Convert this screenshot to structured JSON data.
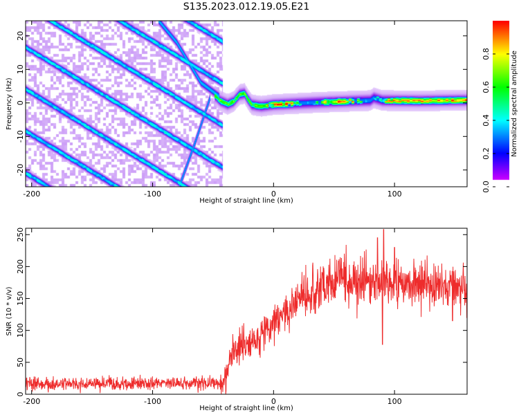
{
  "title": "S135.2023.012.19.05.E21",
  "chart_data": [
    {
      "type": "heatmap",
      "xlabel": "Height of straight line (km)",
      "ylabel": "Frequency (Hz)",
      "xlim": [
        -205,
        160
      ],
      "ylim": [
        -25,
        24.5
      ],
      "xticks": [
        -200,
        -100,
        0,
        100
      ],
      "yticks": [
        -20,
        -10,
        0,
        10,
        20
      ],
      "colorbar": {
        "label": "Normalized spectral amplitude",
        "range": [
          0,
          1
        ],
        "ticks": [
          0.0,
          0.2,
          0.4,
          0.6,
          0.8
        ],
        "colormap": "hsv",
        "low_end_color": "#ffffff"
      },
      "sweep_lines": {
        "slope_hz_per_km": -0.22,
        "spacing_hz": 12.5,
        "offsets_hz_at_x_minus_200": [
          -47,
          -34.5,
          -22,
          -9.5,
          3,
          15.5,
          28,
          40.5,
          53
        ],
        "cutoff_x_km": -42
      },
      "steep_lines": [
        {
          "x": [
            -95,
            -80,
            -60,
            -45
          ],
          "y": [
            24.5,
            18,
            6,
            2
          ]
        },
        {
          "x": [
            -78,
            -65,
            -52
          ],
          "y": [
            -25,
            -12,
            2
          ]
        }
      ],
      "carrier_band": {
        "from_x_km": -45,
        "to_x_km": 160,
        "peak_amplitude": 1.0,
        "track": {
          "x": [
            -48,
            -44,
            -38,
            -33,
            -28,
            -24,
            -21,
            -18,
            -14,
            -10,
            0,
            40,
            80,
            83,
            90,
            120,
            160
          ],
          "y": [
            2,
            0.6,
            -0.4,
            0.4,
            2.5,
            2.8,
            1,
            -0.5,
            -0.8,
            -1,
            -0.5,
            0.2,
            0.7,
            1.5,
            0.7,
            0.6,
            0.8
          ]
        }
      }
    },
    {
      "type": "line",
      "xlabel": "Height of straight line (km)",
      "ylabel": "SNR (10 * v/v)",
      "xlim": [
        -205,
        160
      ],
      "ylim": [
        0,
        260
      ],
      "xticks": [
        -200,
        -100,
        0,
        100
      ],
      "yticks": [
        0,
        50,
        100,
        150,
        200,
        250
      ],
      "color": "#ee2c2c",
      "envelope": {
        "x": [
          -205,
          -80,
          -42,
          -35,
          -25,
          -15,
          -5,
          5,
          15,
          25,
          35,
          55,
          85,
          105,
          120,
          140,
          160
        ],
        "y": [
          17,
          17,
          18,
          60,
          75,
          85,
          100,
          120,
          140,
          155,
          165,
          180,
          175,
          170,
          175,
          170,
          165
        ]
      },
      "spikes": [
        {
          "x": 86,
          "y": 245
        },
        {
          "x": 88,
          "y": 160
        },
        {
          "x": 90,
          "y": 78
        },
        {
          "x": 91,
          "y": 258
        },
        {
          "x": 100,
          "y": 230
        },
        {
          "x": 148,
          "y": 115
        },
        {
          "x": 160,
          "y": 120
        }
      ]
    }
  ]
}
